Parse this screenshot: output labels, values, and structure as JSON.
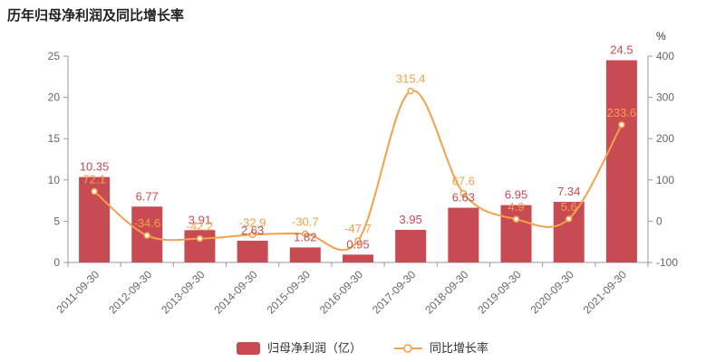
{
  "title": "历年归母净利润及同比增长率",
  "legend": {
    "items": [
      {
        "label": "归母净利润（亿）",
        "type": "bar",
        "color": "#c84b53"
      },
      {
        "label": "同比增长率",
        "type": "line",
        "color": "#f5a04a"
      }
    ]
  },
  "chart_data": {
    "type": "bar+line",
    "categories": [
      "2011-09-30",
      "2012-09-30",
      "2013-09-30",
      "2014-09-30",
      "2015-09-30",
      "2016-09-30",
      "2017-09-30",
      "2018-09-30",
      "2019-09-30",
      "2020-09-30",
      "2021-09-30"
    ],
    "series": [
      {
        "name": "归母净利润（亿）",
        "type": "bar",
        "axis": "left",
        "color": "#c84b53",
        "values": [
          10.35,
          6.77,
          3.91,
          2.63,
          1.82,
          0.95,
          3.95,
          6.63,
          6.95,
          7.34,
          24.5
        ]
      },
      {
        "name": "同比增长率",
        "type": "line",
        "axis": "right",
        "color": "#f5a04a",
        "values": [
          72.1,
          -34.6,
          -42.2,
          -32.9,
          -30.7,
          -47.7,
          315.4,
          67.6,
          4.9,
          5.6,
          233.6
        ]
      }
    ],
    "left_axis": {
      "min": 0,
      "max": 25,
      "ticks": [
        0,
        5,
        10,
        15,
        20,
        25
      ]
    },
    "right_axis": {
      "min": -100,
      "max": 400,
      "ticks": [
        -100,
        0,
        100,
        200,
        300,
        400
      ],
      "unit": "%"
    },
    "grid": false,
    "legend_position": "bottom",
    "axis_text_color": "#666666",
    "axis_line_color": "#999999"
  }
}
